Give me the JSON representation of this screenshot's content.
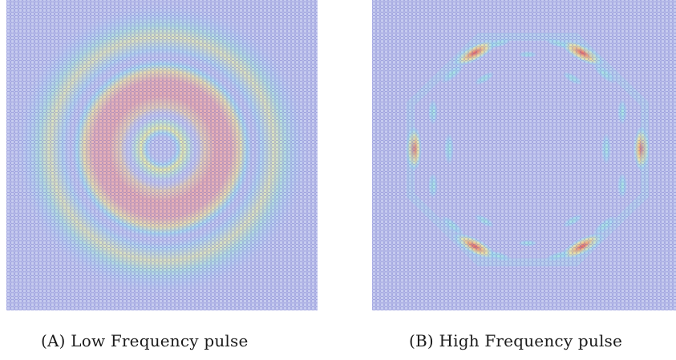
{
  "figure": {
    "panels": [
      {
        "id": "a",
        "label": "(A)",
        "caption": "Low Frequency pulse",
        "pattern": "concentric-rings",
        "lattice": "hexagonal",
        "mesh_color": "#3b3bb4",
        "colormap": [
          "#b4bcf0",
          "#8fe8f4",
          "#bdf7c4",
          "#f4f59a",
          "#f6c58a",
          "#f1a3a3"
        ]
      },
      {
        "id": "b",
        "label": "(B)",
        "caption": "High Frequency pulse",
        "pattern": "hexagonal-wavefront-lobes",
        "lattice": "hexagonal",
        "mesh_color": "#3b3bb4",
        "colormap": [
          "#b4bcf0",
          "#8fe8f4",
          "#bdf7c4",
          "#f4f59a",
          "#f6c58a",
          "#e95b5b"
        ]
      }
    ]
  }
}
